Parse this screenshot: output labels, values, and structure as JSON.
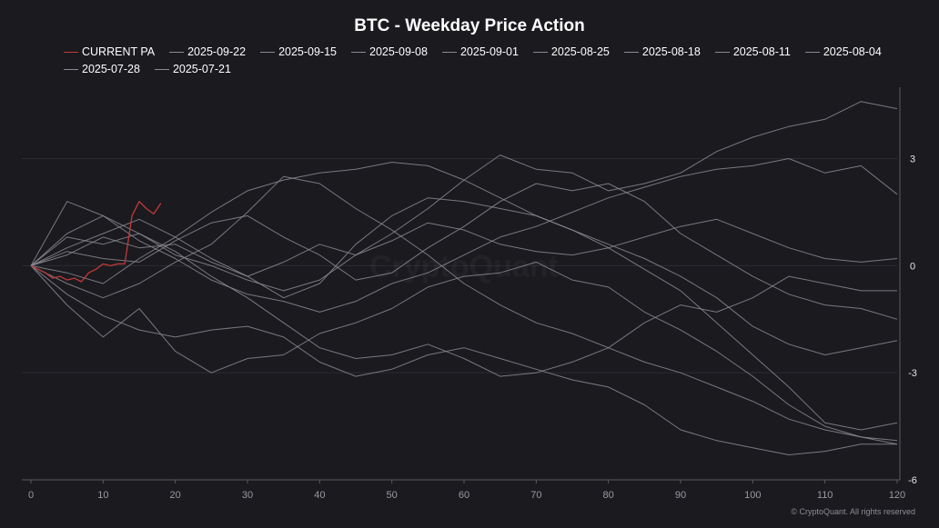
{
  "chart_data": {
    "type": "line",
    "title": "BTC - Weekday Price Action",
    "xlabel": "",
    "ylabel": "",
    "xlim": [
      0,
      120
    ],
    "ylim": [
      -6,
      5
    ],
    "x_ticks": [
      0,
      10,
      20,
      30,
      40,
      50,
      60,
      70,
      80,
      90,
      100,
      110,
      120
    ],
    "y_ticks": [
      3,
      0,
      -3,
      -6
    ],
    "y_axis_side": "right",
    "grid": "horizontal",
    "legend_position": "top",
    "watermark": "CryptoQuant",
    "credit": "© CryptoQuant. All rights reserved",
    "colors": {
      "current": "#c03a3a",
      "history": "#8a8a93",
      "background": "#1b1a1f",
      "grid": "#2e2d33"
    },
    "series": [
      {
        "name": "CURRENT PA",
        "highlight": true,
        "points": [
          [
            0,
            0
          ],
          [
            1,
            -0.1
          ],
          [
            2,
            -0.2
          ],
          [
            3,
            -0.35
          ],
          [
            4,
            -0.3
          ],
          [
            5,
            -0.4
          ],
          [
            6,
            -0.35
          ],
          [
            7,
            -0.45
          ],
          [
            8,
            -0.2
          ],
          [
            9,
            -0.1
          ],
          [
            10,
            0.05
          ],
          [
            11,
            0.0
          ],
          [
            12,
            0.05
          ],
          [
            13,
            0.05
          ],
          [
            14,
            1.4
          ],
          [
            15,
            1.8
          ],
          [
            16,
            1.6
          ],
          [
            17,
            1.45
          ],
          [
            18,
            1.75
          ]
        ]
      },
      {
        "name": "2025-09-22",
        "points": [
          [
            0,
            0
          ],
          [
            5,
            0.4
          ],
          [
            10,
            0.2
          ],
          [
            15,
            0.1
          ],
          [
            20,
            0.7
          ],
          [
            25,
            1.2
          ],
          [
            30,
            1.4
          ],
          [
            35,
            0.8
          ],
          [
            40,
            0.3
          ],
          [
            45,
            -0.4
          ],
          [
            50,
            -0.2
          ],
          [
            55,
            0.5
          ],
          [
            60,
            1.1
          ],
          [
            65,
            1.8
          ],
          [
            70,
            2.3
          ],
          [
            75,
            2.1
          ],
          [
            80,
            2.3
          ],
          [
            85,
            1.8
          ],
          [
            90,
            0.9
          ],
          [
            95,
            0.3
          ],
          [
            100,
            -0.3
          ],
          [
            105,
            -0.8
          ],
          [
            110,
            -1.1
          ],
          [
            115,
            -1.2
          ],
          [
            120,
            -1.5
          ]
        ]
      },
      {
        "name": "2025-09-15",
        "points": [
          [
            0,
            0
          ],
          [
            5,
            0.8
          ],
          [
            10,
            0.6
          ],
          [
            15,
            0.9
          ],
          [
            20,
            0.3
          ],
          [
            25,
            0.0
          ],
          [
            30,
            -0.4
          ],
          [
            35,
            -0.7
          ],
          [
            40,
            -0.4
          ],
          [
            45,
            0.3
          ],
          [
            50,
            0.9
          ],
          [
            55,
            1.6
          ],
          [
            60,
            2.4
          ],
          [
            65,
            3.1
          ],
          [
            70,
            2.7
          ],
          [
            75,
            2.6
          ],
          [
            80,
            2.1
          ],
          [
            85,
            2.3
          ],
          [
            90,
            2.6
          ],
          [
            95,
            3.2
          ],
          [
            100,
            3.6
          ],
          [
            105,
            3.9
          ],
          [
            110,
            4.1
          ],
          [
            115,
            4.6
          ],
          [
            120,
            4.4
          ]
        ]
      },
      {
        "name": "2025-09-08",
        "points": [
          [
            0,
            0
          ],
          [
            5,
            -0.5
          ],
          [
            10,
            -0.9
          ],
          [
            15,
            -0.5
          ],
          [
            20,
            0.1
          ],
          [
            25,
            0.6
          ],
          [
            30,
            1.5
          ],
          [
            35,
            2.5
          ],
          [
            40,
            2.3
          ],
          [
            45,
            1.6
          ],
          [
            50,
            1.0
          ],
          [
            55,
            0.3
          ],
          [
            60,
            -0.5
          ],
          [
            65,
            -1.1
          ],
          [
            70,
            -1.6
          ],
          [
            75,
            -1.9
          ],
          [
            80,
            -2.3
          ],
          [
            85,
            -2.7
          ],
          [
            90,
            -3.0
          ],
          [
            95,
            -3.4
          ],
          [
            100,
            -3.8
          ],
          [
            105,
            -4.3
          ],
          [
            110,
            -4.6
          ],
          [
            115,
            -4.8
          ],
          [
            120,
            -5.0
          ]
        ]
      },
      {
        "name": "2025-09-01",
        "points": [
          [
            0,
            0
          ],
          [
            5,
            0.9
          ],
          [
            10,
            1.4
          ],
          [
            15,
            0.9
          ],
          [
            20,
            0.4
          ],
          [
            25,
            -0.3
          ],
          [
            30,
            -0.9
          ],
          [
            35,
            -1.6
          ],
          [
            40,
            -2.3
          ],
          [
            45,
            -2.6
          ],
          [
            50,
            -2.5
          ],
          [
            55,
            -2.2
          ],
          [
            60,
            -2.6
          ],
          [
            65,
            -3.1
          ],
          [
            70,
            -3.0
          ],
          [
            75,
            -2.7
          ],
          [
            80,
            -2.3
          ],
          [
            85,
            -1.6
          ],
          [
            90,
            -1.1
          ],
          [
            95,
            -1.3
          ],
          [
            100,
            -0.9
          ],
          [
            105,
            -0.3
          ],
          [
            110,
            -0.5
          ],
          [
            115,
            -0.7
          ],
          [
            120,
            -0.7
          ]
        ]
      },
      {
        "name": "2025-08-25",
        "points": [
          [
            0,
            0
          ],
          [
            5,
            -1.1
          ],
          [
            10,
            -2.0
          ],
          [
            15,
            -1.2
          ],
          [
            20,
            -2.4
          ],
          [
            25,
            -3.0
          ],
          [
            30,
            -2.6
          ],
          [
            35,
            -2.5
          ],
          [
            40,
            -1.9
          ],
          [
            45,
            -1.6
          ],
          [
            50,
            -1.2
          ],
          [
            55,
            -0.6
          ],
          [
            60,
            -0.3
          ],
          [
            65,
            -0.2
          ],
          [
            70,
            0.1
          ],
          [
            75,
            -0.4
          ],
          [
            80,
            -0.6
          ],
          [
            85,
            -1.3
          ],
          [
            90,
            -1.8
          ],
          [
            95,
            -2.4
          ],
          [
            100,
            -3.1
          ],
          [
            105,
            -3.9
          ],
          [
            110,
            -4.5
          ],
          [
            115,
            -4.8
          ],
          [
            120,
            -4.9
          ]
        ]
      },
      {
        "name": "2025-08-18",
        "points": [
          [
            0,
            0
          ],
          [
            5,
            1.8
          ],
          [
            10,
            1.4
          ],
          [
            15,
            0.7
          ],
          [
            20,
            0.2
          ],
          [
            25,
            -0.4
          ],
          [
            30,
            -0.8
          ],
          [
            35,
            -1.0
          ],
          [
            40,
            -1.3
          ],
          [
            45,
            -1.0
          ],
          [
            50,
            -0.5
          ],
          [
            55,
            -0.2
          ],
          [
            60,
            0.3
          ],
          [
            65,
            0.8
          ],
          [
            70,
            1.1
          ],
          [
            75,
            1.5
          ],
          [
            80,
            1.9
          ],
          [
            85,
            2.2
          ],
          [
            90,
            2.5
          ],
          [
            95,
            2.7
          ],
          [
            100,
            2.8
          ],
          [
            105,
            3.0
          ],
          [
            110,
            2.6
          ],
          [
            115,
            2.8
          ],
          [
            120,
            2.0
          ]
        ]
      },
      {
        "name": "2025-08-11",
        "points": [
          [
            0,
            0
          ],
          [
            5,
            0.5
          ],
          [
            10,
            0.9
          ],
          [
            15,
            1.3
          ],
          [
            20,
            0.8
          ],
          [
            25,
            0.2
          ],
          [
            30,
            -0.3
          ],
          [
            35,
            -0.9
          ],
          [
            40,
            -0.5
          ],
          [
            45,
            0.6
          ],
          [
            50,
            1.4
          ],
          [
            55,
            1.9
          ],
          [
            60,
            1.8
          ],
          [
            65,
            1.6
          ],
          [
            70,
            1.4
          ],
          [
            75,
            1.0
          ],
          [
            80,
            0.5
          ],
          [
            85,
            -0.1
          ],
          [
            90,
            -0.7
          ],
          [
            95,
            -1.6
          ],
          [
            100,
            -2.5
          ],
          [
            105,
            -3.4
          ],
          [
            110,
            -4.4
          ],
          [
            115,
            -4.6
          ],
          [
            120,
            -4.4
          ]
        ]
      },
      {
        "name": "2025-08-04",
        "points": [
          [
            0,
            0
          ],
          [
            5,
            -0.2
          ],
          [
            10,
            -0.5
          ],
          [
            15,
            0.2
          ],
          [
            20,
            0.8
          ],
          [
            25,
            1.5
          ],
          [
            30,
            2.1
          ],
          [
            35,
            2.4
          ],
          [
            40,
            2.6
          ],
          [
            45,
            2.7
          ],
          [
            50,
            2.9
          ],
          [
            55,
            2.8
          ],
          [
            60,
            2.4
          ],
          [
            65,
            1.9
          ],
          [
            70,
            1.4
          ],
          [
            75,
            1.0
          ],
          [
            80,
            0.6
          ],
          [
            85,
            0.2
          ],
          [
            90,
            -0.3
          ],
          [
            95,
            -0.9
          ],
          [
            100,
            -1.7
          ],
          [
            105,
            -2.2
          ],
          [
            110,
            -2.5
          ],
          [
            115,
            -2.3
          ],
          [
            120,
            -2.1
          ]
        ]
      },
      {
        "name": "2025-07-28",
        "points": [
          [
            0,
            0
          ],
          [
            5,
            -0.8
          ],
          [
            10,
            -1.4
          ],
          [
            15,
            -1.8
          ],
          [
            20,
            -2.0
          ],
          [
            25,
            -1.8
          ],
          [
            30,
            -1.7
          ],
          [
            35,
            -2.0
          ],
          [
            40,
            -2.7
          ],
          [
            45,
            -3.1
          ],
          [
            50,
            -2.9
          ],
          [
            55,
            -2.5
          ],
          [
            60,
            -2.3
          ],
          [
            65,
            -2.6
          ],
          [
            70,
            -2.9
          ],
          [
            75,
            -3.2
          ],
          [
            80,
            -3.4
          ],
          [
            85,
            -3.9
          ],
          [
            90,
            -4.6
          ],
          [
            95,
            -4.9
          ],
          [
            100,
            -5.1
          ],
          [
            105,
            -5.3
          ],
          [
            110,
            -5.2
          ],
          [
            115,
            -5.0
          ],
          [
            120,
            -5.0
          ]
        ]
      },
      {
        "name": "2025-07-21",
        "points": [
          [
            0,
            0
          ],
          [
            5,
            0.3
          ],
          [
            10,
            0.8
          ],
          [
            15,
            0.5
          ],
          [
            20,
            0.6
          ],
          [
            25,
            0.1
          ],
          [
            30,
            -0.3
          ],
          [
            35,
            0.1
          ],
          [
            40,
            0.6
          ],
          [
            45,
            0.3
          ],
          [
            50,
            0.7
          ],
          [
            55,
            1.2
          ],
          [
            60,
            1.0
          ],
          [
            65,
            0.6
          ],
          [
            70,
            0.4
          ],
          [
            75,
            0.3
          ],
          [
            80,
            0.5
          ],
          [
            85,
            0.8
          ],
          [
            90,
            1.1
          ],
          [
            95,
            1.3
          ],
          [
            100,
            0.9
          ],
          [
            105,
            0.5
          ],
          [
            110,
            0.2
          ],
          [
            115,
            0.1
          ],
          [
            120,
            0.2
          ]
        ]
      }
    ]
  }
}
